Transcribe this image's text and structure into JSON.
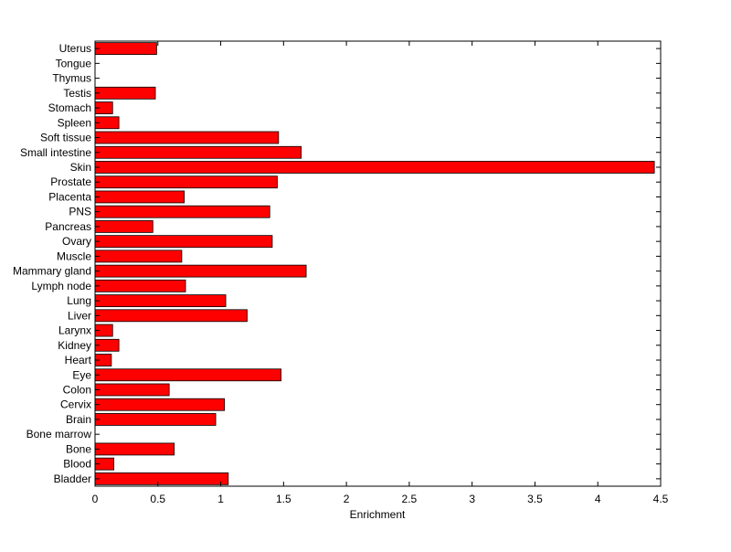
{
  "chart_data": {
    "type": "bar",
    "orientation": "horizontal",
    "title": "",
    "xlabel": "Enrichment",
    "ylabel": "",
    "xlim": [
      0,
      4.5
    ],
    "xticks": [
      0,
      0.5,
      1,
      1.5,
      2,
      2.5,
      3,
      3.5,
      4,
      4.5
    ],
    "xtick_labels": [
      "0",
      "0.5",
      "1",
      "1.5",
      "2",
      "2.5",
      "3",
      "3.5",
      "4",
      "4.5"
    ],
    "grid": false,
    "legend": "none",
    "bar_color": "#ff0000",
    "categories": [
      "Bladder",
      "Blood",
      "Bone",
      "Bone marrow",
      "Brain",
      "Cervix",
      "Colon",
      "Eye",
      "Heart",
      "Kidney",
      "Larynx",
      "Liver",
      "Lung",
      "Lymph node",
      "Mammary gland",
      "Muscle",
      "Ovary",
      "Pancreas",
      "PNS",
      "Placenta",
      "Prostate",
      "Skin",
      "Small intestine",
      "Soft tissue",
      "Spleen",
      "Stomach",
      "Testis",
      "Thymus",
      "Tongue",
      "Uterus"
    ],
    "values": [
      1.06,
      0.15,
      0.63,
      0,
      0.96,
      1.03,
      0.59,
      1.48,
      0.13,
      0.19,
      0.14,
      1.21,
      1.04,
      0.72,
      1.68,
      0.69,
      1.41,
      0.46,
      1.39,
      0.71,
      1.45,
      4.45,
      1.64,
      1.46,
      0.19,
      0.14,
      0.48,
      0,
      0,
      0.49
    ]
  }
}
